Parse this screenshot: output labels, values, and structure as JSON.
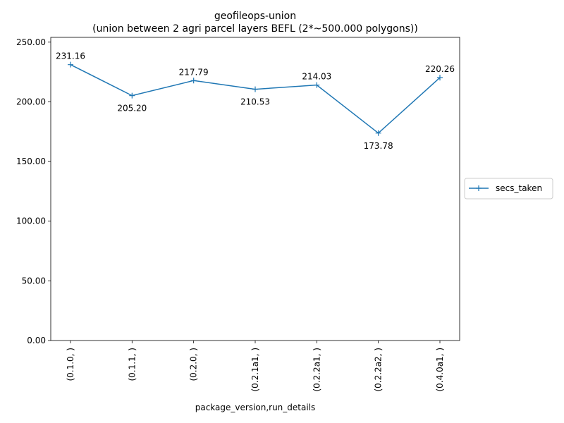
{
  "chart_data": {
    "type": "line",
    "title": "geofileops-union",
    "subtitle": "(union between 2 agri parcel layers BEFL (2*~500.000 polygons))",
    "xlabel": "package_version,run_details",
    "ylabel": "",
    "categories": [
      "(0.1.0, )",
      "(0.1.1, )",
      "(0.2.0, )",
      "(0.2.1a1, )",
      "(0.2.2a1, )",
      "(0.2.2a2, )",
      "(0.4.0a1, )"
    ],
    "series": [
      {
        "name": "secs_taken",
        "values": [
          231.16,
          205.2,
          217.79,
          210.53,
          214.03,
          173.78,
          220.26
        ],
        "data_labels": [
          "231.16",
          "205.20",
          "217.79",
          "210.53",
          "214.03",
          "173.78",
          "220.26"
        ],
        "color": "#1f77b4",
        "marker": "+"
      }
    ],
    "ylim": [
      0,
      254
    ],
    "yticks": [
      0,
      50,
      100,
      150,
      200,
      250
    ],
    "ytick_labels": [
      "0.00",
      "50.00",
      "100.00",
      "150.00",
      "200.00",
      "250.00"
    ],
    "grid": false,
    "legend_position": "right-outside"
  }
}
